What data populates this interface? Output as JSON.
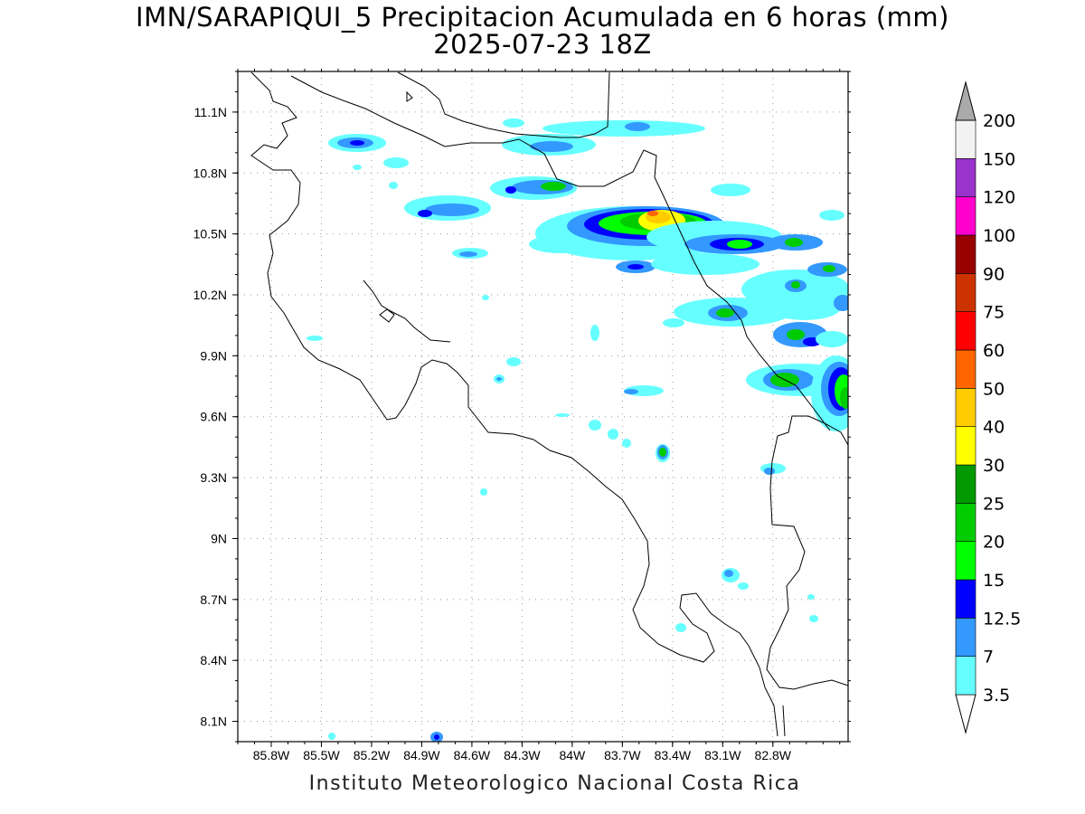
{
  "title": {
    "line1": "IMN/SARAPIQUI_5 Precipitacion Acumulada en 6 horas (mm)",
    "line2": "2025-07-23 18Z"
  },
  "footer": "Instituto Meteorologico Nacional Costa Rica",
  "map": {
    "lon_range": [
      -86.0,
      -82.35
    ],
    "lat_range": [
      8.0,
      11.3
    ],
    "grid_dotted": true,
    "lat_ticks": [
      "11.1N",
      "10.8N",
      "10.5N",
      "10.2N",
      "9.9N",
      "9.6N",
      "9.3N",
      "9N",
      "8.7N",
      "8.4N",
      "8.1N"
    ],
    "lat_values": [
      11.1,
      10.8,
      10.5,
      10.2,
      9.9,
      9.6,
      9.3,
      9.0,
      8.7,
      8.4,
      8.1
    ],
    "lon_ticks": [
      "85.8W",
      "85.5W",
      "85.2W",
      "84.9W",
      "84.6W",
      "84.3W",
      "84W",
      "83.7W",
      "83.4W",
      "83.1W",
      "82.8W"
    ],
    "lon_values": [
      -85.8,
      -85.5,
      -85.2,
      -84.9,
      -84.6,
      -84.3,
      -84.0,
      -83.7,
      -83.4,
      -83.1,
      -82.8
    ]
  },
  "colorbar": {
    "units": "mm",
    "levels": [
      "3.5",
      "7",
      "12.5",
      "15",
      "20",
      "25",
      "30",
      "40",
      "50",
      "60",
      "75",
      "90",
      "100",
      "120",
      "150",
      "200"
    ],
    "colors": [
      "#66ffff",
      "#3399ff",
      "#0000ff",
      "#00ff00",
      "#00cc00",
      "#009900",
      "#ffff00",
      "#ffcc00",
      "#ff6600",
      "#ff0000",
      "#cc3300",
      "#990000",
      "#ff00cc",
      "#9933cc",
      "#f2f2f2",
      "#aaaaaa"
    ],
    "extend": "both"
  }
}
